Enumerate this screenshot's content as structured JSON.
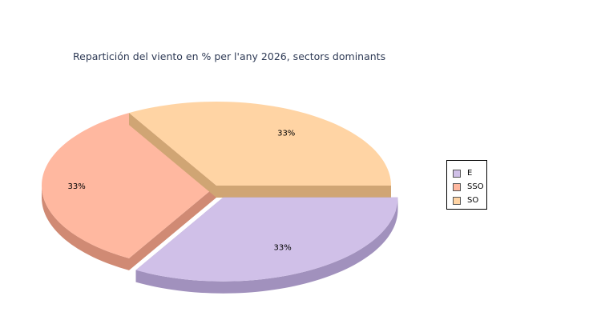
{
  "chart_data": {
    "type": "pie",
    "title": "Repartición del viento en % per l'any 2026, sectors dominants",
    "categories": [
      "E",
      "SSO",
      "SO"
    ],
    "values": [
      33.3,
      33.3,
      33.3
    ],
    "data_labels": [
      "33%",
      "33%",
      "33%"
    ],
    "exploded": [
      "E"
    ],
    "colors": {
      "E": {
        "top": "#d0c0e8",
        "side": "#a191bd"
      },
      "SSO": {
        "top": "#ffb8a0",
        "side": "#d08a74"
      },
      "SO": {
        "top": "#ffd4a4",
        "side": "#d0a574"
      }
    },
    "legend": {
      "position": "right",
      "items": [
        "E",
        "SSO",
        "SO"
      ]
    },
    "style": "3d"
  }
}
